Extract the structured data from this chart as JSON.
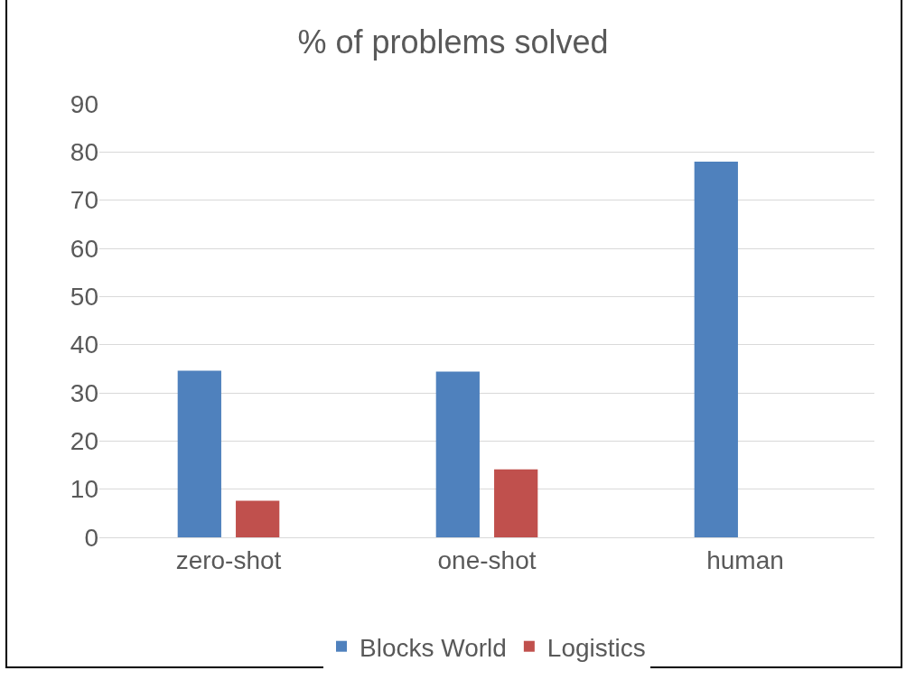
{
  "chart_data": {
    "type": "bar",
    "title": "% of problems solved",
    "categories": [
      "zero-shot",
      "one-shot",
      "human"
    ],
    "series": [
      {
        "name": "Blocks World",
        "color": "#4f81bd",
        "values": [
          34.6,
          34.4,
          78
        ]
      },
      {
        "name": "Logistics",
        "color": "#c0504d",
        "values": [
          7.6,
          14.1,
          null
        ]
      }
    ],
    "ylim": [
      0,
      90
    ],
    "yticks": [
      0,
      10,
      20,
      30,
      40,
      50,
      60,
      70,
      80,
      90
    ],
    "grid": "y",
    "legend": "bottom"
  }
}
